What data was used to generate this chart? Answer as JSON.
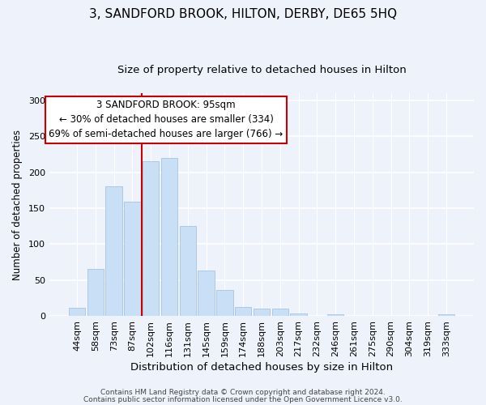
{
  "title": "3, SANDFORD BROOK, HILTON, DERBY, DE65 5HQ",
  "subtitle": "Size of property relative to detached houses in Hilton",
  "xlabel": "Distribution of detached houses by size in Hilton",
  "ylabel": "Number of detached properties",
  "bar_labels": [
    "44sqm",
    "58sqm",
    "73sqm",
    "87sqm",
    "102sqm",
    "116sqm",
    "131sqm",
    "145sqm",
    "159sqm",
    "174sqm",
    "188sqm",
    "203sqm",
    "217sqm",
    "232sqm",
    "246sqm",
    "261sqm",
    "275sqm",
    "290sqm",
    "304sqm",
    "319sqm",
    "333sqm"
  ],
  "bar_values": [
    12,
    65,
    180,
    159,
    215,
    220,
    125,
    63,
    36,
    13,
    10,
    10,
    4,
    0,
    3,
    0,
    0,
    0,
    0,
    0,
    2
  ],
  "bar_color": "#c9dff5",
  "bar_edge_color": "#a8c4e0",
  "vline_x_index": 4,
  "vline_color": "#cc0000",
  "annotation_title": "3 SANDFORD BROOK: 95sqm",
  "annotation_line1": "← 30% of detached houses are smaller (334)",
  "annotation_line2": "69% of semi-detached houses are larger (766) →",
  "box_facecolor": "#ffffff",
  "box_edgecolor": "#cc0000",
  "ylim": [
    0,
    310
  ],
  "yticks": [
    0,
    50,
    100,
    150,
    200,
    250,
    300
  ],
  "footer1": "Contains HM Land Registry data © Crown copyright and database right 2024.",
  "footer2": "Contains public sector information licensed under the Open Government Licence v3.0.",
  "background_color": "#eef2fa",
  "title_fontsize": 11,
  "subtitle_fontsize": 9.5,
  "xlabel_fontsize": 9.5,
  "ylabel_fontsize": 8.5,
  "tick_fontsize": 8,
  "annotation_fontsize": 8.5,
  "footer_fontsize": 6.5
}
